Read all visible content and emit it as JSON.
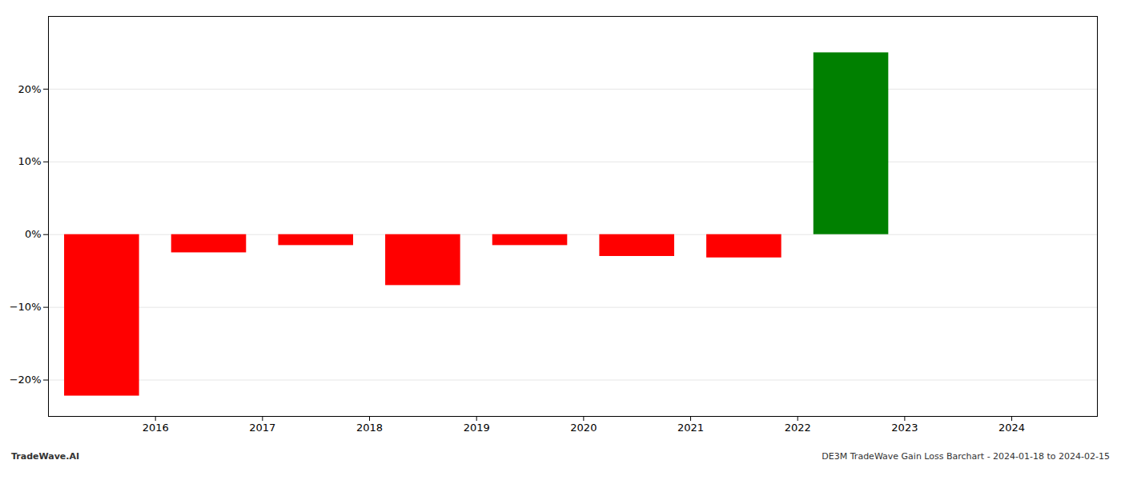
{
  "chart_data": {
    "type": "bar",
    "x": [
      2015.5,
      2016.5,
      2017.5,
      2018.5,
      2019.5,
      2020.5,
      2021.5,
      2022.5,
      2023.5
    ],
    "values": [
      -22.2,
      -2.5,
      -1.5,
      -7.0,
      -1.5,
      -3.0,
      -3.2,
      25.0,
      0.0
    ],
    "colors": [
      "#ff0000",
      "#ff0000",
      "#ff0000",
      "#ff0000",
      "#ff0000",
      "#ff0000",
      "#ff0000",
      "#008000",
      "#ffffff"
    ],
    "xlim": [
      2015.0,
      2024.8
    ],
    "xticks": [
      2016,
      2017,
      2018,
      2019,
      2020,
      2021,
      2022,
      2023,
      2024
    ],
    "ylim": [
      -25,
      30
    ],
    "yticks": [
      {
        "value": -20,
        "label": "−20%"
      },
      {
        "value": -10,
        "label": "−10%"
      },
      {
        "value": 0,
        "label": "0%"
      },
      {
        "value": 10,
        "label": "10%"
      },
      {
        "value": 20,
        "label": "20%"
      }
    ],
    "grid": true,
    "annotations": [
      "TradeWave.AI",
      "DE3M TradeWave Gain Loss Barchart - 2024-01-18 to 2024-02-15"
    ]
  }
}
